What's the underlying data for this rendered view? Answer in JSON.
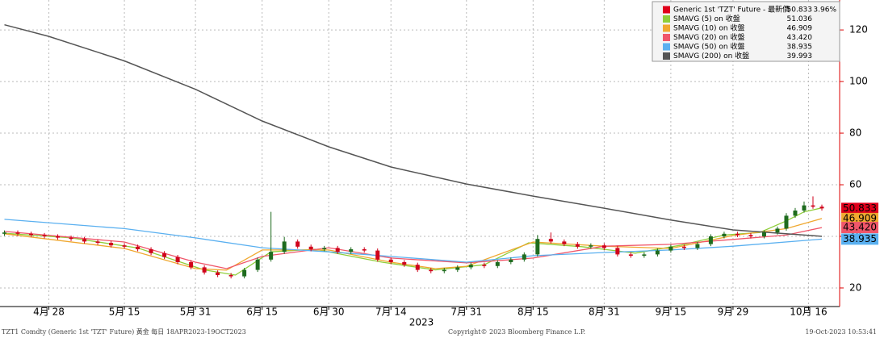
{
  "chart_data": {
    "type": "candlestick",
    "xlim": [
      -1,
      188
    ],
    "ylim": [
      12.8,
      131.6
    ],
    "xticks": [
      {
        "value": 10,
        "label": "4月 28"
      },
      {
        "value": 27,
        "label": "5月 15"
      },
      {
        "value": 43,
        "label": "5月 31"
      },
      {
        "value": 58,
        "label": "6月 15"
      },
      {
        "value": 73,
        "label": "6月 30"
      },
      {
        "value": 87,
        "label": "7月 14"
      },
      {
        "value": 104,
        "label": "7月 31"
      },
      {
        "value": 119,
        "label": "8月 15"
      },
      {
        "value": 135,
        "label": "8月 31"
      },
      {
        "value": 150,
        "label": "9月 15"
      },
      {
        "value": 164,
        "label": "9月 29"
      },
      {
        "value": 181,
        "label": "10月 16"
      }
    ],
    "yticks": [
      20,
      40,
      60,
      80,
      100,
      120
    ],
    "year_label": "2023",
    "grid": true,
    "up_color": "#1e6b1e",
    "down_color": "#d0021b",
    "main": {
      "name": "Generic 1st 'TZT' Future - 最新價",
      "color": "#e0001b",
      "last_value": 50.833,
      "last_label": "50.833",
      "change": 3.96,
      "change_label": "3.96%"
    },
    "candles": {
      "x": [
        0,
        3,
        6,
        9,
        12,
        15,
        18,
        21,
        24,
        27,
        30,
        33,
        36,
        39,
        42,
        45,
        48,
        51,
        54,
        57,
        60,
        63,
        66,
        69,
        72,
        75,
        78,
        81,
        84,
        87,
        90,
        93,
        96,
        99,
        102,
        105,
        108,
        111,
        114,
        117,
        120,
        123,
        126,
        129,
        132,
        135,
        138,
        141,
        144,
        147,
        150,
        153,
        156,
        159,
        162,
        165,
        168,
        171,
        174,
        176,
        178,
        180,
        182,
        184
      ],
      "open": [
        41,
        41.5,
        41,
        40.5,
        40,
        39.5,
        39,
        38,
        37.5,
        36.5,
        36,
        35,
        33.5,
        32,
        30,
        28,
        26,
        25,
        24.5,
        27,
        31,
        34,
        38,
        36,
        35,
        35.5,
        34,
        35,
        34.5,
        31,
        30,
        29,
        27,
        26.5,
        27,
        28,
        29,
        28.5,
        30,
        31,
        33,
        39,
        38,
        37,
        36,
        36.5,
        35.5,
        33,
        32.5,
        33,
        34.5,
        36,
        35.5,
        37,
        40,
        41,
        40.5,
        40,
        41.5,
        43,
        48,
        50,
        52,
        51.5
      ],
      "high": [
        42.3,
        42.3,
        41.8,
        41.3,
        40.8,
        40.3,
        39.8,
        38.8,
        38.3,
        37.3,
        36.8,
        35.8,
        34.3,
        32.8,
        30.8,
        28.8,
        26.8,
        25.8,
        27.8,
        31.8,
        49.5,
        39.8,
        38.8,
        36.8,
        36.3,
        36.3,
        35.8,
        35.8,
        35.3,
        31.8,
        30.8,
        29.8,
        27.8,
        27.8,
        28.8,
        29.8,
        29.8,
        30.8,
        31.8,
        33.8,
        40.5,
        41.5,
        38.8,
        37.8,
        37.3,
        37.3,
        36.3,
        33.8,
        33.8,
        35.3,
        36.8,
        36.8,
        37.8,
        40.8,
        41.8,
        41.8,
        41.3,
        42.3,
        43.8,
        49,
        51,
        53.5,
        55.5,
        52.3
      ],
      "low": [
        40.2,
        40.2,
        39.7,
        39.2,
        38.7,
        38.2,
        37.2,
        36.7,
        35.7,
        35.2,
        34.2,
        32.7,
        31.2,
        29.2,
        27.2,
        25.2,
        24.2,
        23.7,
        23.7,
        26.2,
        30.2,
        33.2,
        35.2,
        34.2,
        34.2,
        33.2,
        33.2,
        33.7,
        30.2,
        29.2,
        28.2,
        26.2,
        25.7,
        25.7,
        26.2,
        27.2,
        27.7,
        27.7,
        29.2,
        30.2,
        32.2,
        37.2,
        36.2,
        35.2,
        35.2,
        34.7,
        32.2,
        31.7,
        31.7,
        32.2,
        33.7,
        34.7,
        34.7,
        36.2,
        39.2,
        39.7,
        39.2,
        39.2,
        40.7,
        42.2,
        47.2,
        49.2,
        50.7,
        50
      ],
      "close": [
        41.5,
        41,
        40.5,
        40,
        39.5,
        39,
        38,
        37.5,
        36.5,
        36,
        35,
        33.5,
        32,
        30,
        28,
        26,
        25,
        24.5,
        27,
        31,
        34,
        38,
        36,
        35,
        35.5,
        34,
        35,
        34.5,
        31,
        30,
        29,
        27,
        26.5,
        27,
        28,
        29,
        28.5,
        30,
        31,
        33,
        39,
        38,
        37,
        36,
        36.5,
        35.5,
        33,
        32.5,
        33,
        34.5,
        36,
        35.5,
        37,
        40,
        41,
        40.5,
        40,
        41.5,
        43,
        48,
        50,
        52,
        51.5,
        50.833
      ]
    },
    "series": [
      {
        "name": "SMAVG (5)  on 收盤",
        "color": "#8fce3a",
        "last_value": 51.036,
        "last_label": "51.036",
        "tag": false,
        "x": [
          0,
          15,
          30,
          45,
          52,
          60,
          70,
          85,
          97,
          108,
          118,
          130,
          142,
          152,
          162,
          170,
          176,
          180,
          184
        ],
        "values": [
          41.2,
          39.4,
          35.5,
          27,
          25,
          34,
          35,
          30,
          27,
          29,
          37.5,
          36,
          33.5,
          36.5,
          40.5,
          41.5,
          46,
          49.5,
          51.036
        ]
      },
      {
        "name": "SMAVG (10)  on 收盤",
        "color": "#f0a830",
        "last_value": 46.909,
        "last_label": "46.909",
        "tag": true,
        "x": [
          0,
          27,
          43,
          50,
          58,
          73,
          87,
          97,
          104,
          119,
          135,
          150,
          164,
          176,
          184
        ],
        "values": [
          41,
          35.3,
          27.5,
          26.9,
          34.7,
          34.7,
          30,
          27.5,
          28.4,
          37.8,
          36.2,
          35.3,
          40.3,
          43,
          46.909
        ]
      },
      {
        "name": "SMAVG (20)  on 收盤",
        "color": "#f0566a",
        "last_value": 43.42,
        "last_label": "43.420",
        "tag": true,
        "x": [
          0,
          27,
          43,
          50,
          58,
          73,
          87,
          104,
          119,
          135,
          150,
          164,
          176,
          184
        ],
        "values": [
          41.9,
          37.8,
          30,
          27.5,
          32.2,
          35.6,
          31.6,
          29.7,
          31.6,
          36.2,
          36.9,
          38.8,
          40.5,
          43.42
        ]
      },
      {
        "name": "SMAVG (50)  on 收盤",
        "color": "#5ab0f0",
        "last_value": 38.935,
        "last_label": "38.935",
        "tag": true,
        "x": [
          0,
          27,
          43,
          58,
          73,
          87,
          104,
          119,
          135,
          150,
          164,
          184
        ],
        "values": [
          46.6,
          43,
          39.4,
          35.6,
          34,
          32.2,
          30,
          32.5,
          33.75,
          34.7,
          36.2,
          38.935
        ]
      },
      {
        "name": "SMAVG (200)  on 收盤",
        "color": "#555555",
        "last_value": 39.993,
        "last_label": "39.993",
        "tag": false,
        "x": [
          0,
          10,
          27,
          43,
          58,
          73,
          87,
          104,
          119,
          135,
          150,
          164,
          184
        ],
        "values": [
          122,
          117.5,
          108,
          97,
          84.7,
          74.7,
          66.9,
          60.3,
          55.6,
          50.9,
          46.3,
          42.5,
          39.993
        ]
      }
    ],
    "footer_left": "TZT1 Comdty (Generic 1st 'TZT' Future) 黃金  每日 18APR2023-19OCT2023",
    "footer_center": "Copyright© 2023 Bloomberg Finance L.P.",
    "footer_right": "19-Oct-2023 10:53:41"
  }
}
